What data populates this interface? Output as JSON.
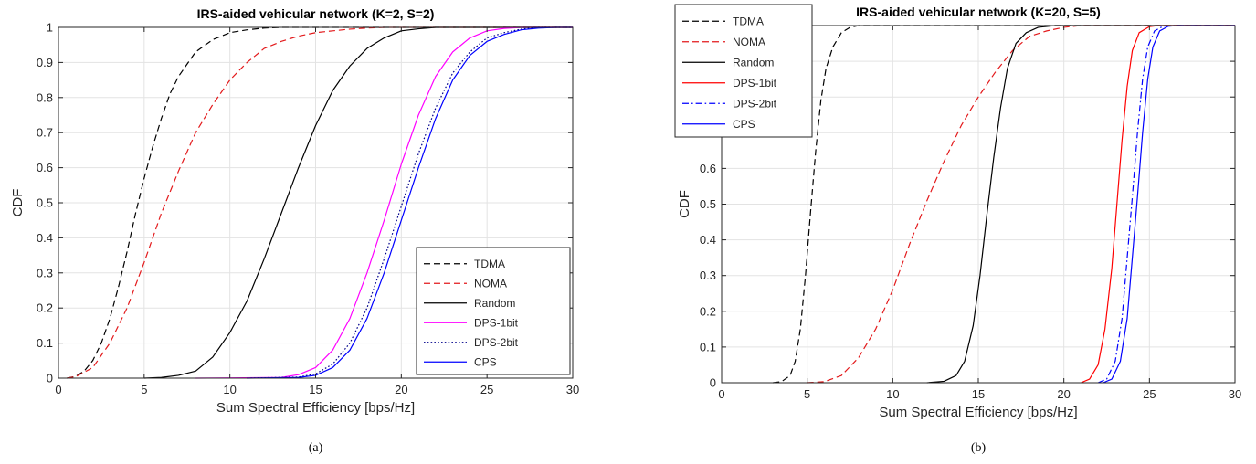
{
  "chart_data": [
    {
      "type": "line",
      "title": "IRS-aided vehicular network (K=2, S=2)",
      "xlabel": "Sum Spectral Efficiency [bps/Hz]",
      "ylabel": "CDF",
      "caption": "(a)",
      "xlim": [
        0,
        30
      ],
      "ylim": [
        0,
        1
      ],
      "xticks": [
        "0",
        "5",
        "10",
        "15",
        "20",
        "25",
        "30"
      ],
      "yticks": [
        "0",
        "0.1",
        "0.2",
        "0.3",
        "0.4",
        "0.5",
        "0.6",
        "0.7",
        "0.8",
        "0.9",
        "1"
      ],
      "grid": true,
      "legend": "bottom-right",
      "series": [
        {
          "name": "TDMA",
          "color": "#000000",
          "dash": "dashed",
          "points": [
            [
              0.5,
              0
            ],
            [
              1,
              0.005
            ],
            [
              1.5,
              0.02
            ],
            [
              2,
              0.05
            ],
            [
              2.5,
              0.1
            ],
            [
              3,
              0.17
            ],
            [
              3.5,
              0.26
            ],
            [
              4,
              0.36
            ],
            [
              4.5,
              0.47
            ],
            [
              5,
              0.57
            ],
            [
              5.5,
              0.66
            ],
            [
              6,
              0.74
            ],
            [
              6.5,
              0.81
            ],
            [
              7,
              0.86
            ],
            [
              8,
              0.93
            ],
            [
              9,
              0.965
            ],
            [
              10,
              0.985
            ],
            [
              11,
              0.993
            ],
            [
              12,
              0.998
            ],
            [
              13,
              1
            ],
            [
              30,
              1
            ]
          ]
        },
        {
          "name": "NOMA",
          "color": "#e31a1c",
          "dash": "dashed",
          "points": [
            [
              0.5,
              0
            ],
            [
              1,
              0.004
            ],
            [
              2,
              0.03
            ],
            [
              3,
              0.1
            ],
            [
              4,
              0.2
            ],
            [
              5,
              0.33
            ],
            [
              6,
              0.47
            ],
            [
              7,
              0.59
            ],
            [
              8,
              0.7
            ],
            [
              9,
              0.78
            ],
            [
              10,
              0.85
            ],
            [
              11,
              0.9
            ],
            [
              12,
              0.94
            ],
            [
              13,
              0.96
            ],
            [
              14,
              0.975
            ],
            [
              15,
              0.985
            ],
            [
              16,
              0.99
            ],
            [
              17,
              0.995
            ],
            [
              18,
              0.998
            ],
            [
              19,
              1
            ],
            [
              30,
              1
            ]
          ]
        },
        {
          "name": "Random",
          "color": "#000000",
          "dash": "solid",
          "points": [
            [
              5,
              0
            ],
            [
              6,
              0.002
            ],
            [
              7,
              0.008
            ],
            [
              8,
              0.02
            ],
            [
              9,
              0.06
            ],
            [
              10,
              0.13
            ],
            [
              11,
              0.22
            ],
            [
              12,
              0.34
            ],
            [
              13,
              0.47
            ],
            [
              14,
              0.6
            ],
            [
              15,
              0.72
            ],
            [
              16,
              0.82
            ],
            [
              17,
              0.89
            ],
            [
              18,
              0.94
            ],
            [
              19,
              0.97
            ],
            [
              20,
              0.99
            ],
            [
              21,
              0.996
            ],
            [
              22,
              1
            ],
            [
              30,
              1
            ]
          ]
        },
        {
          "name": "DPS-1bit",
          "color": "#ff00ff",
          "dash": "solid",
          "points": [
            [
              8,
              0
            ],
            [
              13,
              0.002
            ],
            [
              14,
              0.01
            ],
            [
              15,
              0.03
            ],
            [
              16,
              0.08
            ],
            [
              17,
              0.17
            ],
            [
              18,
              0.3
            ],
            [
              19,
              0.45
            ],
            [
              20,
              0.61
            ],
            [
              21,
              0.75
            ],
            [
              22,
              0.86
            ],
            [
              23,
              0.93
            ],
            [
              24,
              0.97
            ],
            [
              25,
              0.99
            ],
            [
              26,
              0.997
            ],
            [
              27,
              1
            ],
            [
              30,
              1
            ]
          ]
        },
        {
          "name": "DPS-2bit",
          "color": "#00008b",
          "dash": "dotted",
          "points": [
            [
              11,
              0
            ],
            [
              14,
              0.003
            ],
            [
              15,
              0.012
            ],
            [
              16,
              0.04
            ],
            [
              17,
              0.1
            ],
            [
              18,
              0.2
            ],
            [
              19,
              0.34
            ],
            [
              20,
              0.49
            ],
            [
              21,
              0.64
            ],
            [
              22,
              0.77
            ],
            [
              23,
              0.87
            ],
            [
              24,
              0.93
            ],
            [
              25,
              0.97
            ],
            [
              26,
              0.985
            ],
            [
              27,
              0.995
            ],
            [
              28,
              1
            ],
            [
              30,
              1
            ]
          ]
        },
        {
          "name": "CPS",
          "color": "#0000ff",
          "dash": "solid",
          "points": [
            [
              11,
              0
            ],
            [
              14,
              0.002
            ],
            [
              15,
              0.008
            ],
            [
              16,
              0.03
            ],
            [
              17,
              0.08
            ],
            [
              18,
              0.17
            ],
            [
              19,
              0.3
            ],
            [
              20,
              0.45
            ],
            [
              21,
              0.6
            ],
            [
              22,
              0.74
            ],
            [
              23,
              0.85
            ],
            [
              24,
              0.92
            ],
            [
              25,
              0.96
            ],
            [
              26,
              0.98
            ],
            [
              27,
              0.993
            ],
            [
              28,
              0.998
            ],
            [
              29,
              1
            ],
            [
              30,
              1
            ]
          ]
        }
      ]
    },
    {
      "type": "line",
      "title": "IRS-aided vehicular network (K=20, S=5)",
      "xlabel": "Sum Spectral Efficiency [bps/Hz]",
      "ylabel": "CDF",
      "caption": "(b)",
      "xlim": [
        0,
        30
      ],
      "ylim": [
        0,
        1
      ],
      "xticks": [
        "0",
        "5",
        "10",
        "15",
        "20",
        "25",
        "30"
      ],
      "yticks": [
        "0",
        "0.1",
        "0.2",
        "0.3",
        "0.4",
        "0.5",
        "0.6",
        "0.7",
        "0.8",
        "0.9",
        "1"
      ],
      "grid": true,
      "legend": "top-left",
      "series": [
        {
          "name": "TDMA",
          "color": "#000000",
          "dash": "dashed",
          "points": [
            [
              3,
              0
            ],
            [
              3.5,
              0.003
            ],
            [
              4,
              0.02
            ],
            [
              4.3,
              0.06
            ],
            [
              4.6,
              0.15
            ],
            [
              4.9,
              0.3
            ],
            [
              5.2,
              0.48
            ],
            [
              5.5,
              0.65
            ],
            [
              5.8,
              0.79
            ],
            [
              6.1,
              0.88
            ],
            [
              6.5,
              0.94
            ],
            [
              7,
              0.98
            ],
            [
              7.5,
              0.995
            ],
            [
              8,
              1
            ],
            [
              30,
              1
            ]
          ]
        },
        {
          "name": "NOMA",
          "color": "#e31a1c",
          "dash": "dashed",
          "points": [
            [
              5,
              0
            ],
            [
              6,
              0.003
            ],
            [
              7,
              0.02
            ],
            [
              8,
              0.07
            ],
            [
              9,
              0.15
            ],
            [
              10,
              0.26
            ],
            [
              11,
              0.39
            ],
            [
              12,
              0.51
            ],
            [
              13,
              0.62
            ],
            [
              14,
              0.72
            ],
            [
              15,
              0.8
            ],
            [
              16,
              0.87
            ],
            [
              17,
              0.93
            ],
            [
              18,
              0.97
            ],
            [
              19,
              0.985
            ],
            [
              20,
              0.995
            ],
            [
              21,
              1
            ],
            [
              30,
              1
            ]
          ]
        },
        {
          "name": "Random",
          "color": "#000000",
          "dash": "solid",
          "points": [
            [
              12,
              0
            ],
            [
              13,
              0.004
            ],
            [
              13.7,
              0.02
            ],
            [
              14.2,
              0.06
            ],
            [
              14.7,
              0.16
            ],
            [
              15.1,
              0.3
            ],
            [
              15.5,
              0.47
            ],
            [
              15.9,
              0.63
            ],
            [
              16.3,
              0.77
            ],
            [
              16.7,
              0.88
            ],
            [
              17.2,
              0.95
            ],
            [
              17.8,
              0.98
            ],
            [
              18.5,
              0.995
            ],
            [
              19.5,
              1
            ],
            [
              30,
              1
            ]
          ]
        },
        {
          "name": "DPS-1bit",
          "color": "#ff0000",
          "dash": "solid",
          "points": [
            [
              21,
              0
            ],
            [
              21.5,
              0.01
            ],
            [
              22,
              0.05
            ],
            [
              22.4,
              0.15
            ],
            [
              22.8,
              0.32
            ],
            [
              23.1,
              0.5
            ],
            [
              23.4,
              0.68
            ],
            [
              23.7,
              0.83
            ],
            [
              24,
              0.93
            ],
            [
              24.4,
              0.98
            ],
            [
              25,
              0.997
            ],
            [
              25.5,
              1
            ],
            [
              30,
              1
            ]
          ]
        },
        {
          "name": "DPS-2bit",
          "color": "#0000ff",
          "dash": "dashdot",
          "points": [
            [
              22,
              0
            ],
            [
              22.5,
              0.01
            ],
            [
              23,
              0.06
            ],
            [
              23.4,
              0.18
            ],
            [
              23.7,
              0.35
            ],
            [
              24,
              0.52
            ],
            [
              24.3,
              0.7
            ],
            [
              24.6,
              0.85
            ],
            [
              24.9,
              0.94
            ],
            [
              25.3,
              0.985
            ],
            [
              25.8,
              0.998
            ],
            [
              26.3,
              1
            ],
            [
              30,
              1
            ]
          ]
        },
        {
          "name": "CPS",
          "color": "#0000ff",
          "dash": "solid",
          "points": [
            [
              22.3,
              0
            ],
            [
              22.8,
              0.01
            ],
            [
              23.3,
              0.06
            ],
            [
              23.7,
              0.18
            ],
            [
              24,
              0.35
            ],
            [
              24.3,
              0.52
            ],
            [
              24.6,
              0.7
            ],
            [
              24.9,
              0.85
            ],
            [
              25.2,
              0.94
            ],
            [
              25.6,
              0.985
            ],
            [
              26.1,
              0.998
            ],
            [
              26.6,
              1
            ],
            [
              30,
              1
            ]
          ]
        }
      ]
    }
  ]
}
